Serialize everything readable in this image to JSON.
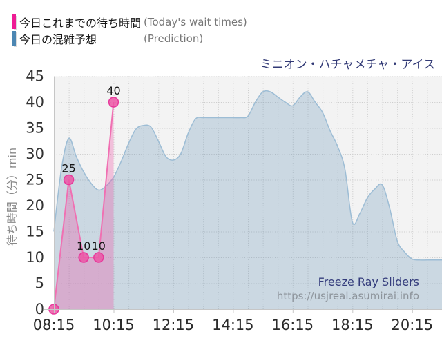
{
  "title": "ミニオン・ハチャメチャ・アイス",
  "legend": {
    "series1": {
      "label": "今日これまでの待ち時間",
      "label_en": "(Today's wait times)",
      "color": "#ee1b94"
    },
    "series2": {
      "label": "今日の混雑予想",
      "label_en": "(Prediction)",
      "color": "#4c86b2"
    }
  },
  "watermark": {
    "line1": "Freeze Ray Sliders",
    "line2": "https://usjreal.asumirai.info"
  },
  "ui_colors": {
    "title_navy": "#323a76",
    "legend_sub_gray": "#777777",
    "url_gray": "#8d949b"
  },
  "chart_data": {
    "type": "area",
    "title": "ミニオン・ハチャメチャ・アイス",
    "xlabel": "",
    "ylabel": "待ち時間（分）min",
    "ylim": [
      0,
      45
    ],
    "y_ticks": [
      0,
      5,
      10,
      15,
      20,
      25,
      30,
      35,
      40,
      45
    ],
    "x_ticks": [
      "08:15",
      "10:15",
      "12:15",
      "14:15",
      "16:15",
      "18:15",
      "20:15"
    ],
    "x_range_hours": [
      8.25,
      21.25
    ],
    "grid": "dotted, every 5 min on y, every 30 min on x",
    "legend_position": "top-left",
    "series": [
      {
        "name": "今日これまでの待ち時間",
        "name_en": "Today's wait times",
        "style": "line-markers-filled",
        "points": [
          [
            "08:15",
            0,
            ""
          ],
          [
            "08:45",
            25,
            "25"
          ],
          [
            "09:15",
            10,
            "10"
          ],
          [
            "09:45",
            10,
            "10"
          ],
          [
            "10:15",
            40,
            "40"
          ]
        ]
      },
      {
        "name": "今日の混雑予想",
        "name_en": "Prediction",
        "style": "smooth-area",
        "points": [
          [
            "08:15",
            15
          ],
          [
            "08:30",
            27
          ],
          [
            "08:45",
            33
          ],
          [
            "09:00",
            29.5
          ],
          [
            "09:15",
            26.5
          ],
          [
            "09:30",
            24.3
          ],
          [
            "09:45",
            23
          ],
          [
            "10:00",
            23.8
          ],
          [
            "10:15",
            25.5
          ],
          [
            "10:30",
            28.5
          ],
          [
            "10:45",
            32
          ],
          [
            "11:00",
            34.8
          ],
          [
            "11:15",
            35.5
          ],
          [
            "11:30",
            35.2
          ],
          [
            "11:45",
            32.5
          ],
          [
            "12:00",
            29.5
          ],
          [
            "12:15",
            28.8
          ],
          [
            "12:30",
            30
          ],
          [
            "12:45",
            34
          ],
          [
            "13:00",
            36.8
          ],
          [
            "13:15",
            37
          ],
          [
            "13:30",
            37
          ],
          [
            "13:45",
            37
          ],
          [
            "14:00",
            37
          ],
          [
            "14:15",
            37
          ],
          [
            "14:30",
            37
          ],
          [
            "14:45",
            37.3
          ],
          [
            "15:00",
            40
          ],
          [
            "15:15",
            42
          ],
          [
            "15:30",
            42
          ],
          [
            "15:45",
            41
          ],
          [
            "16:00",
            40
          ],
          [
            "16:15",
            39.3
          ],
          [
            "16:30",
            41
          ],
          [
            "16:45",
            42
          ],
          [
            "17:00",
            40
          ],
          [
            "17:15",
            38
          ],
          [
            "17:30",
            34.5
          ],
          [
            "17:45",
            31.5
          ],
          [
            "18:00",
            27
          ],
          [
            "18:15",
            16.8
          ],
          [
            "18:30",
            18.5
          ],
          [
            "18:45",
            21.5
          ],
          [
            "19:00",
            23.2
          ],
          [
            "19:15",
            24
          ],
          [
            "19:30",
            19.5
          ],
          [
            "19:45",
            13.2
          ],
          [
            "20:00",
            11
          ],
          [
            "20:15",
            9.7
          ],
          [
            "20:30",
            9.5
          ],
          [
            "20:45",
            9.5
          ],
          [
            "21:00",
            9.5
          ],
          [
            "21:15",
            9.5
          ]
        ]
      }
    ],
    "colors": {
      "actual": "#ee1b94",
      "actual_line": "#f070b2",
      "actual_fill": "rgba(236,84,168,0.33)",
      "marker_fill": "#ec55a5",
      "marker_stroke": "#e7389b",
      "prediction": "#4c86b2",
      "prediction_line": "#9dbdd5",
      "prediction_fill": "rgba(95,143,182,0.27)",
      "grid": "#c9c9c9",
      "axis": "#c6c6c6",
      "plot_bg": "#f3f3f3",
      "tick_text": "#2b2b2b",
      "point_label_text": "#151515"
    }
  }
}
